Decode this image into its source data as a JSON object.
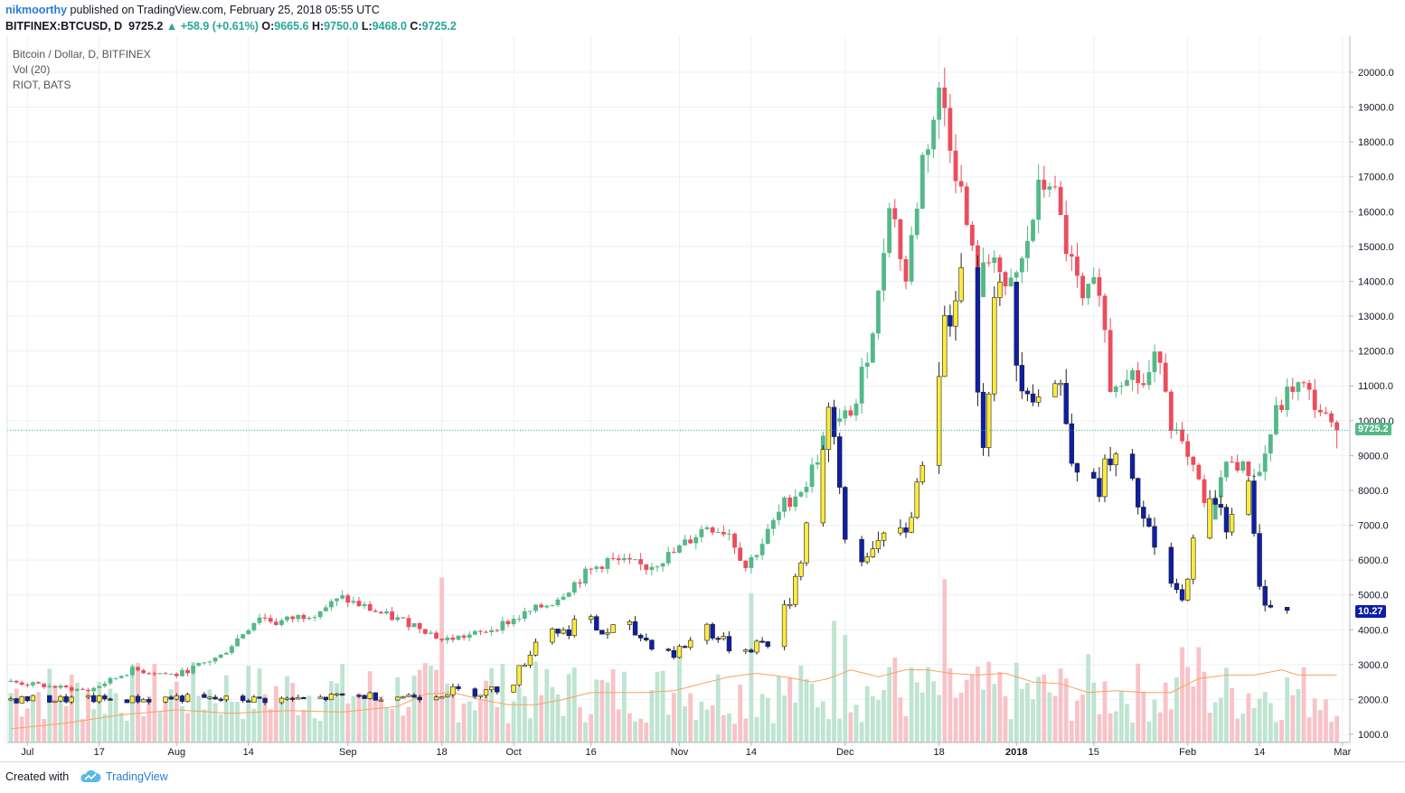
{
  "header": {
    "author": "nikmoorthy",
    "published_text": "published on TradingView.com, February 25, 2018 05:55 UTC",
    "symbol": "BITFINEX:BTCUSD, D",
    "last": "9725.2",
    "change": "+58.9 (+0.61%)",
    "o_label": "O:",
    "o_value": "9665.6",
    "h_label": "H:",
    "h_value": "9750.0",
    "l_label": "L:",
    "l_value": "9468.0",
    "c_label": "C:",
    "c_value": "9725.2"
  },
  "legend": {
    "main": "Bitcoin / Dollar, D, BITFINEX",
    "volume": "Vol (20)",
    "overlay": "RIOT, BATS"
  },
  "price_labels": {
    "btc_last": "9725.2",
    "riot_last": "10.27"
  },
  "footer": {
    "created_with": "Created with",
    "brand": "TradingView"
  },
  "colors": {
    "up": "#53b987",
    "down": "#eb4d5c",
    "up_volume": "#bfe4d2",
    "down_volume": "#f8c3c8",
    "riot_up": "#ffeb3b",
    "riot_down": "#0d1fa8",
    "vol_ma": "#f7a35c",
    "last_price_line": "#26a69a",
    "author": "#2a7bd5"
  },
  "chart_data": {
    "type": "candlestick",
    "y_axis_ticks": [
      20000,
      19000,
      18000,
      17000,
      16000,
      15000,
      14000,
      13000,
      12000,
      11000,
      10000,
      9000,
      8000,
      7000,
      6000,
      5000,
      4000,
      3000,
      2000,
      1000
    ],
    "y_axis_tick_labels": [
      "20000.0",
      "19000.0",
      "18000.0",
      "17000.0",
      "16000.0",
      "15000.0",
      "14000.0",
      "13000.0",
      "12000.0",
      "11000.0",
      "10000.0",
      "9000.0",
      "8000.0",
      "7000.0",
      "6000.0",
      "5000.0",
      "4000.0",
      "3000.0",
      "2000.0",
      "1000.0"
    ],
    "ylim": [
      850,
      20400
    ],
    "x_tick_labels": [
      {
        "label": "Jul",
        "index": 3
      },
      {
        "label": "17",
        "index": 16
      },
      {
        "label": "Aug",
        "index": 30
      },
      {
        "label": "14",
        "index": 43
      },
      {
        "label": "Sep",
        "index": 61
      },
      {
        "label": "18",
        "index": 78
      },
      {
        "label": "Oct",
        "index": 91
      },
      {
        "label": "16",
        "index": 105
      },
      {
        "label": "Nov",
        "index": 121
      },
      {
        "label": "14",
        "index": 134
      },
      {
        "label": "Dec",
        "index": 151
      },
      {
        "label": "18",
        "index": 168
      },
      {
        "label": "2018",
        "index": 182
      },
      {
        "label": "15",
        "index": 196
      },
      {
        "label": "Feb",
        "index": 213
      },
      {
        "label": "14",
        "index": 226
      },
      {
        "label": "Mar",
        "index": 241
      }
    ],
    "btc_close_points": [
      [
        0,
        2500
      ],
      [
        14,
        2250
      ],
      [
        22,
        2850
      ],
      [
        30,
        2700
      ],
      [
        38,
        3250
      ],
      [
        45,
        4400
      ],
      [
        48,
        4200
      ],
      [
        55,
        4500
      ],
      [
        60,
        4900
      ],
      [
        68,
        4400
      ],
      [
        74,
        4100
      ],
      [
        78,
        3700
      ],
      [
        85,
        3900
      ],
      [
        91,
        4300
      ],
      [
        98,
        4800
      ],
      [
        104,
        5600
      ],
      [
        108,
        6000
      ],
      [
        115,
        5800
      ],
      [
        120,
        6200
      ],
      [
        126,
        7000
      ],
      [
        130,
        6800
      ],
      [
        133,
        5800
      ],
      [
        136,
        6500
      ],
      [
        140,
        7600
      ],
      [
        144,
        8200
      ],
      [
        148,
        9800
      ],
      [
        150,
        9900
      ],
      [
        153,
        10500
      ],
      [
        157,
        13500
      ],
      [
        159,
        16500
      ],
      [
        162,
        14000
      ],
      [
        165,
        17500
      ],
      [
        168,
        19300
      ],
      [
        169,
        19000
      ],
      [
        172,
        16500
      ],
      [
        175,
        13800
      ],
      [
        178,
        15000
      ],
      [
        180,
        13500
      ],
      [
        183,
        14500
      ],
      [
        186,
        16500
      ],
      [
        188,
        17000
      ],
      [
        191,
        15000
      ],
      [
        194,
        13300
      ],
      [
        197,
        14000
      ],
      [
        199,
        11000
      ],
      [
        202,
        11500
      ],
      [
        205,
        11000
      ],
      [
        208,
        12000
      ],
      [
        210,
        10000
      ],
      [
        213,
        8800
      ],
      [
        215,
        8200
      ],
      [
        217,
        7000
      ],
      [
        218,
        8000
      ],
      [
        221,
        9000
      ],
      [
        223,
        8600
      ],
      [
        226,
        8500
      ],
      [
        229,
        10200
      ],
      [
        232,
        11000
      ],
      [
        234,
        10900
      ],
      [
        237,
        10300
      ],
      [
        239,
        9725
      ]
    ],
    "btc_last": 9725.2,
    "riot_points": [
      [
        0,
        2000
      ],
      [
        5,
        2000
      ],
      [
        10,
        2000
      ],
      [
        15,
        2000
      ],
      [
        20,
        2000
      ],
      [
        25,
        2000
      ],
      [
        30,
        2050
      ],
      [
        35,
        2000
      ],
      [
        40,
        2000
      ],
      [
        45,
        2000
      ],
      [
        50,
        2000
      ],
      [
        55,
        2000
      ],
      [
        60,
        2100
      ],
      [
        65,
        2100
      ],
      [
        70,
        2100
      ],
      [
        75,
        2100
      ],
      [
        80,
        2250
      ],
      [
        85,
        2200
      ],
      [
        88,
        2300
      ],
      [
        91,
        2550
      ],
      [
        94,
        3400
      ],
      [
        97,
        4200
      ],
      [
        100,
        3900
      ],
      [
        103,
        4400
      ],
      [
        107,
        3900
      ],
      [
        111,
        4100
      ],
      [
        115,
        3700
      ],
      [
        118,
        3500
      ],
      [
        120,
        3300
      ],
      [
        123,
        3700
      ],
      [
        126,
        4100
      ],
      [
        129,
        3600
      ],
      [
        132,
        3400
      ],
      [
        135,
        3600
      ],
      [
        138,
        3700
      ],
      [
        141,
        4900
      ],
      [
        143,
        6200
      ],
      [
        146,
        8600
      ],
      [
        148,
        10300
      ],
      [
        151,
        6600
      ],
      [
        153,
        5600
      ],
      [
        156,
        6600
      ],
      [
        159,
        6300
      ],
      [
        162,
        6900
      ],
      [
        164,
        8100
      ],
      [
        166,
        10100
      ],
      [
        167,
        11300
      ],
      [
        169,
        12300
      ],
      [
        172,
        15200
      ],
      [
        174,
        11700
      ],
      [
        176,
        9600
      ],
      [
        178,
        13000
      ],
      [
        179,
        13500
      ],
      [
        181,
        12000
      ],
      [
        185,
        11000
      ],
      [
        187,
        10500
      ],
      [
        188,
        11300
      ],
      [
        190,
        10900
      ],
      [
        192,
        9300
      ],
      [
        196,
        7900
      ],
      [
        198,
        8600
      ],
      [
        200,
        8700
      ],
      [
        202,
        8200
      ],
      [
        204,
        7600
      ],
      [
        207,
        6200
      ],
      [
        209,
        5600
      ],
      [
        211,
        5000
      ],
      [
        212,
        4700
      ],
      [
        213,
        5800
      ],
      [
        215,
        6900
      ],
      [
        216,
        7100
      ],
      [
        218,
        7900
      ],
      [
        220,
        7200
      ],
      [
        222,
        7700
      ],
      [
        224,
        8000
      ],
      [
        226,
        5100
      ],
      [
        228,
        4800
      ],
      [
        230,
        4600
      ],
      [
        231,
        4500
      ]
    ],
    "riot_last": 10.27,
    "volume_ma_points": [
      [
        0,
        1160
      ],
      [
        10,
        1320
      ],
      [
        20,
        1560
      ],
      [
        30,
        1700
      ],
      [
        40,
        1600
      ],
      [
        50,
        1680
      ],
      [
        60,
        1640
      ],
      [
        70,
        1800
      ],
      [
        75,
        2150
      ],
      [
        80,
        2200
      ],
      [
        85,
        2000
      ],
      [
        90,
        1850
      ],
      [
        95,
        1850
      ],
      [
        100,
        2000
      ],
      [
        105,
        2200
      ],
      [
        110,
        2200
      ],
      [
        115,
        2200
      ],
      [
        120,
        2250
      ],
      [
        125,
        2450
      ],
      [
        130,
        2650
      ],
      [
        135,
        2750
      ],
      [
        140,
        2650
      ],
      [
        145,
        2500
      ],
      [
        148,
        2600
      ],
      [
        152,
        2850
      ],
      [
        157,
        2650
      ],
      [
        162,
        2850
      ],
      [
        166,
        2850
      ],
      [
        170,
        2750
      ],
      [
        175,
        2700
      ],
      [
        180,
        2750
      ],
      [
        185,
        2500
      ],
      [
        190,
        2450
      ],
      [
        195,
        2200
      ],
      [
        200,
        2250
      ],
      [
        205,
        2200
      ],
      [
        210,
        2200
      ],
      [
        215,
        2600
      ],
      [
        220,
        2700
      ],
      [
        225,
        2700
      ],
      [
        230,
        2850
      ],
      [
        233,
        2700
      ]
    ],
    "vol_spikes": [
      [
        78,
        5500
      ],
      [
        87,
        2900
      ],
      [
        121,
        3500
      ],
      [
        134,
        5050
      ],
      [
        149,
        4250
      ],
      [
        151,
        3850
      ],
      [
        160,
        3200
      ],
      [
        169,
        5450
      ],
      [
        195,
        3300
      ],
      [
        212,
        3500
      ],
      [
        215,
        3500
      ]
    ]
  }
}
